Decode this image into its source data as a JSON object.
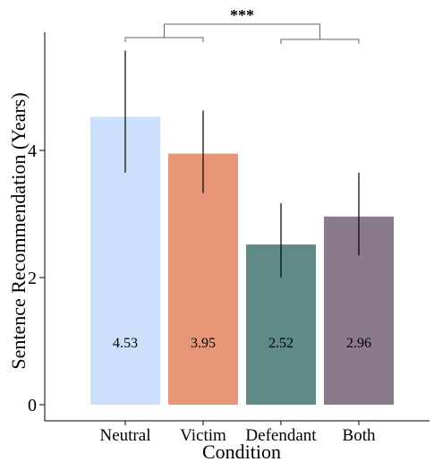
{
  "chart_data": {
    "type": "bar",
    "title": "",
    "xlabel": "Condition",
    "ylabel": "Sentence Recommendation (Years)",
    "categories": [
      "Neutral",
      "Victim",
      "Defendant",
      "Both"
    ],
    "values": [
      4.53,
      3.95,
      2.52,
      2.96
    ],
    "value_labels": [
      "4.53",
      "3.95",
      "2.52",
      "2.96"
    ],
    "error_low": [
      3.65,
      3.33,
      2.0,
      2.35
    ],
    "error_high": [
      5.57,
      4.63,
      3.17,
      3.65
    ],
    "colors": [
      "#cce0fb",
      "#e89678",
      "#5f8a86",
      "#8b7a8b"
    ],
    "ylim": [
      0,
      5.95
    ],
    "yticks": [
      0,
      2,
      4
    ],
    "ytick_labels": [
      "0",
      "2",
      "4"
    ],
    "significance": {
      "label": "***",
      "left_group": [
        "Neutral",
        "Victim"
      ],
      "right_group": [
        "Defendant",
        "Both"
      ]
    },
    "grid": false,
    "legend": "none"
  }
}
